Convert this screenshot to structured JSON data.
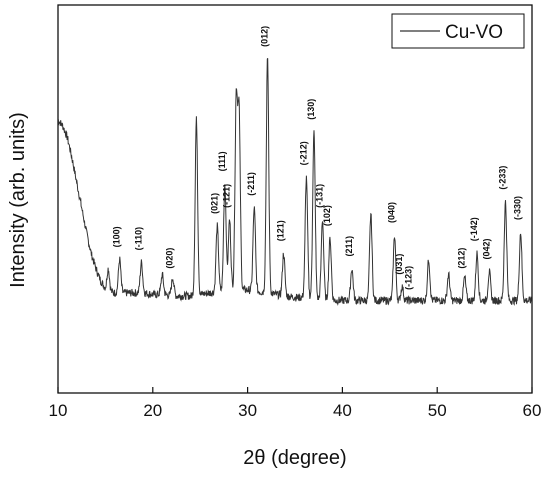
{
  "chart_data": {
    "type": "line",
    "title": "",
    "xlabel": "2θ (degree)",
    "ylabel": "Intensity (arb. units)",
    "xlim": [
      10,
      60
    ],
    "ylim": [
      0,
      100
    ],
    "x_ticks": [
      10,
      20,
      30,
      40,
      50,
      60
    ],
    "y_ticks_shown": false,
    "legend_position": "top-right",
    "grid": false,
    "line_color": "#333333",
    "series": [
      {
        "name": "Cu-VO",
        "baseline_x": [
          10,
          10.5,
          11,
          11.5,
          12,
          12.5,
          13,
          13.5,
          14,
          14.5,
          15,
          15.5,
          16,
          17,
          18,
          19,
          20,
          21,
          22,
          23,
          24,
          25,
          26,
          27,
          28,
          29,
          30,
          31,
          32,
          33,
          34,
          35,
          36,
          37,
          38,
          39,
          40,
          41,
          42,
          43,
          44,
          45,
          46,
          47,
          48,
          49,
          50,
          51,
          52,
          53,
          54,
          55,
          56,
          57,
          58,
          59,
          60
        ],
        "baseline_y": [
          80,
          78,
          74,
          67,
          59,
          51,
          43,
          36,
          31,
          27,
          24.5,
          23.5,
          23,
          23,
          23,
          23,
          22.5,
          22.5,
          22,
          22,
          22,
          22.5,
          23,
          23.5,
          24,
          24,
          24,
          23.5,
          23,
          22.5,
          22,
          21.5,
          21.5,
          21,
          21,
          20.5,
          20.5,
          20.5,
          20.5,
          20.5,
          20.5,
          20.5,
          20.5,
          20.5,
          20.5,
          20.5,
          20.5,
          20.5,
          20.5,
          20.5,
          20.5,
          20.5,
          20.5,
          20.5,
          20.5,
          20.5,
          20.5
        ],
        "peaks": [
          {
            "x": 15.3,
            "y": 31
          },
          {
            "x": 16.5,
            "y": 34
          },
          {
            "x": 18.8,
            "y": 33
          },
          {
            "x": 21.0,
            "y": 29
          },
          {
            "x": 22.1,
            "y": 28
          },
          {
            "x": 24.6,
            "y": 80
          },
          {
            "x": 26.8,
            "y": 45
          },
          {
            "x": 27.6,
            "y": 59
          },
          {
            "x": 28.1,
            "y": 47
          },
          {
            "x": 28.8,
            "y": 86
          },
          {
            "x": 29.1,
            "y": 82
          },
          {
            "x": 30.7,
            "y": 51
          },
          {
            "x": 32.1,
            "y": 100
          },
          {
            "x": 33.8,
            "y": 36
          },
          {
            "x": 36.2,
            "y": 61
          },
          {
            "x": 37.0,
            "y": 76
          },
          {
            "x": 37.9,
            "y": 47
          },
          {
            "x": 38.7,
            "y": 41
          },
          {
            "x": 41.0,
            "y": 31
          },
          {
            "x": 43.0,
            "y": 49
          },
          {
            "x": 45.5,
            "y": 42
          },
          {
            "x": 46.3,
            "y": 25
          },
          {
            "x": 49.1,
            "y": 34
          },
          {
            "x": 51.2,
            "y": 29
          },
          {
            "x": 52.9,
            "y": 28
          },
          {
            "x": 54.2,
            "y": 36
          },
          {
            "x": 55.5,
            "y": 30
          },
          {
            "x": 57.2,
            "y": 53
          },
          {
            "x": 58.8,
            "y": 43
          }
        ]
      }
    ],
    "annotations": [
      {
        "label": "(100)",
        "x": 16.5,
        "y": 38
      },
      {
        "label": "(-110)",
        "x": 18.8,
        "y": 37
      },
      {
        "label": "(020)",
        "x": 22.1,
        "y": 31
      },
      {
        "label": "(021)",
        "x": 26.8,
        "y": 49
      },
      {
        "label": "(111)",
        "x": 27.6,
        "y": 63
      },
      {
        "label": "(-121)",
        "x": 28.1,
        "y": 51
      },
      {
        "label": "(-211)",
        "x": 30.7,
        "y": 55
      },
      {
        "label": "(012)",
        "x": 32.1,
        "y": 104
      },
      {
        "label": "(121)",
        "x": 33.8,
        "y": 40
      },
      {
        "label": "(-212)",
        "x": 36.2,
        "y": 65
      },
      {
        "label": "(130)",
        "x": 37.0,
        "y": 80
      },
      {
        "label": "(-131)",
        "x": 37.9,
        "y": 51
      },
      {
        "label": "(102)",
        "x": 38.7,
        "y": 45
      },
      {
        "label": "(211)",
        "x": 41.0,
        "y": 35
      },
      {
        "label": "(040)",
        "x": 45.5,
        "y": 46
      },
      {
        "label": "(031)",
        "x": 46.3,
        "y": 29
      },
      {
        "label": "(-123)",
        "x": 47.3,
        "y": 24
      },
      {
        "label": "(212)",
        "x": 52.9,
        "y": 31
      },
      {
        "label": "(-142)",
        "x": 54.2,
        "y": 40
      },
      {
        "label": "(042)",
        "x": 55.5,
        "y": 34
      },
      {
        "label": "(-233)",
        "x": 57.2,
        "y": 57
      },
      {
        "label": "(-330)",
        "x": 58.8,
        "y": 47
      }
    ]
  }
}
